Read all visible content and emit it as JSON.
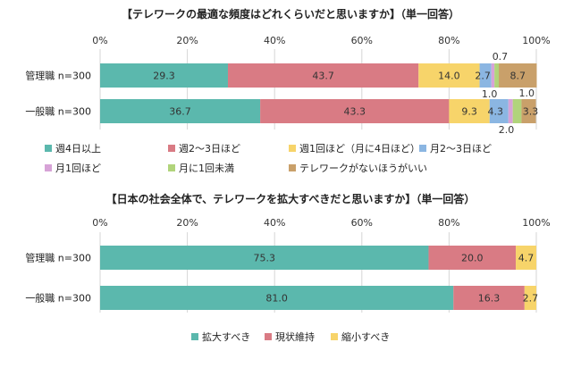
{
  "chart_data": [
    {
      "type": "bar",
      "orientation": "horizontal",
      "stacked": true,
      "title": "【テレワークの最適な頻度はどれくらいだと思いますか】（単一回答）",
      "categories": [
        "管理職 n=300",
        "一般職 n=300"
      ],
      "xlim": [
        0,
        100
      ],
      "tick_labels": [
        "0%",
        "20%",
        "40%",
        "60%",
        "80%",
        "100%"
      ],
      "legend_position": "bottom",
      "series": [
        {
          "name": "週4日以上",
          "color": "#5bb8ad",
          "values": [
            29.3,
            36.7
          ]
        },
        {
          "name": "週2～3日ほど",
          "color": "#d97b84",
          "values": [
            43.7,
            43.3
          ]
        },
        {
          "name": "週1回ほど（月に4日ほど）",
          "color": "#f7d46a",
          "values": [
            14.0,
            9.3
          ]
        },
        {
          "name": "月2～3日ほど",
          "color": "#8bb6e2",
          "values": [
            2.7,
            4.3
          ]
        },
        {
          "name": "月1回ほど",
          "color": "#d7a3d7",
          "values": [
            0.7,
            1.0
          ]
        },
        {
          "name": "月に1回未満",
          "color": "#b1d47b",
          "values": [
            1.0,
            2.0
          ]
        },
        {
          "name": "テレワークがないほうがいい",
          "color": "#c9a06a",
          "values": [
            8.7,
            3.3
          ]
        }
      ]
    },
    {
      "type": "bar",
      "orientation": "horizontal",
      "stacked": true,
      "title": "【日本の社会全体で、テレワークを拡大すべきだと思いますか】（単一回答）",
      "categories": [
        "管理職 n=300",
        "一般職 n=300"
      ],
      "xlim": [
        0,
        100
      ],
      "tick_labels": [
        "0%",
        "20%",
        "40%",
        "60%",
        "80%",
        "100%"
      ],
      "legend_position": "bottom",
      "series": [
        {
          "name": "拡大すべき",
          "color": "#5bb8ad",
          "values": [
            75.3,
            81.0
          ]
        },
        {
          "name": "現状維持",
          "color": "#d97b84",
          "values": [
            20.0,
            16.3
          ]
        },
        {
          "name": "縮小すべき",
          "color": "#f7d46a",
          "values": [
            4.7,
            2.7
          ]
        }
      ]
    }
  ]
}
